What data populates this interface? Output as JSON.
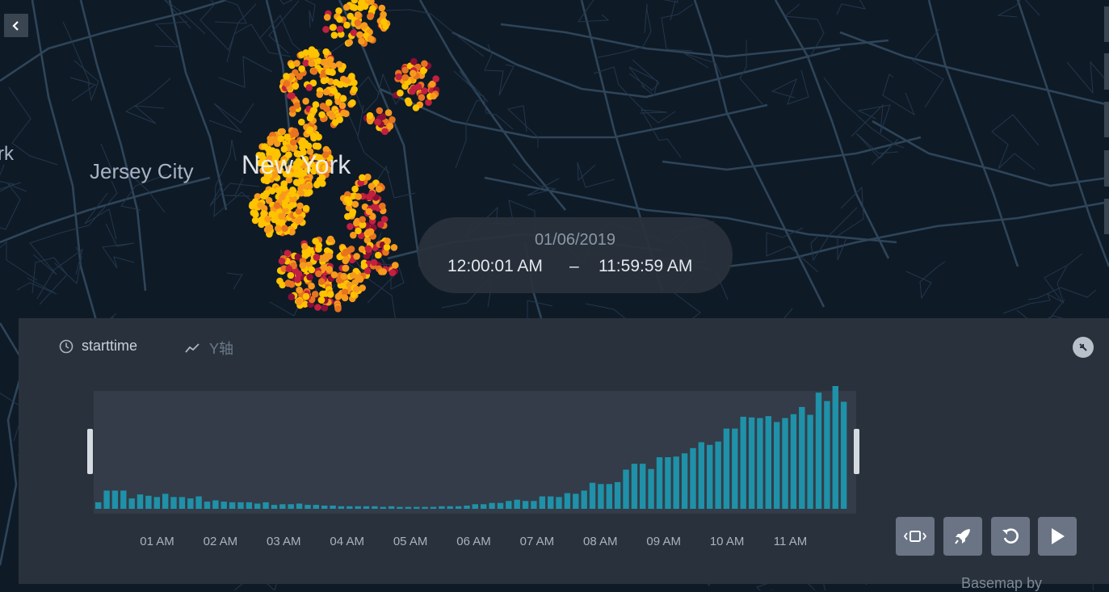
{
  "map": {
    "labels": {
      "newark_partial": "rk",
      "jersey_city": "Jersey City",
      "new_york": "New York"
    },
    "background_color": "#0f1a27",
    "road_color": "#2e4559",
    "point_colors": [
      "#ffc300",
      "#f79a1c",
      "#e8731e",
      "#c3203f",
      "#8a0f36"
    ]
  },
  "icons": {
    "back": "chevron-left-icon",
    "time": "clock-icon",
    "y": "line-chart-icon",
    "collapse": "collapse-arrows-icon"
  },
  "time_display": {
    "date": "01/06/2019",
    "start": "12:00:01 AM",
    "dash": "–",
    "end": "11:59:59 AM"
  },
  "panel": {
    "x_field": "starttime",
    "y_field": "Y轴",
    "buttons": [
      "window-width-icon",
      "rocket-icon",
      "loop-icon",
      "play-icon"
    ]
  },
  "chart_data": {
    "type": "bar",
    "x_label_ticks": [
      "01 AM",
      "02 AM",
      "03 AM",
      "04 AM",
      "05 AM",
      "06 AM",
      "07 AM",
      "08 AM",
      "09 AM",
      "10 AM",
      "11 AM"
    ],
    "values": [
      10,
      28,
      28,
      28,
      16,
      22,
      20,
      18,
      23,
      18,
      18,
      16,
      19,
      11,
      13,
      11,
      10,
      10,
      10,
      8,
      10,
      6,
      7,
      7,
      8,
      6,
      6,
      5,
      5,
      4,
      4,
      4,
      4,
      4,
      3,
      4,
      3,
      3,
      3,
      3,
      3,
      4,
      4,
      4,
      5,
      7,
      7,
      9,
      9,
      12,
      14,
      12,
      12,
      19,
      19,
      18,
      24,
      23,
      28,
      40,
      38,
      38,
      41,
      60,
      69,
      69,
      61,
      79,
      79,
      80,
      85,
      93,
      102,
      98,
      103,
      123,
      123,
      141,
      140,
      139,
      142,
      133,
      139,
      145,
      156,
      144,
      178,
      165,
      188,
      164
    ],
    "ylim": [
      0,
      188
    ]
  },
  "attribution": "Basemap by"
}
